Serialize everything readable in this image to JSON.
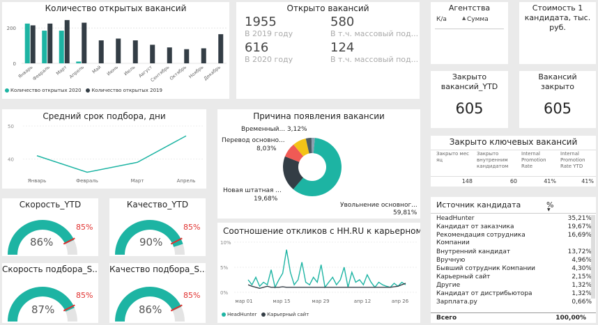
{
  "vacancies_chart": {
    "title": "Количество открытых вакансий",
    "legend": [
      "Количество открытых 2020",
      "Количество открытых 2019"
    ],
    "colors": {
      "s2020": "#1db4a3",
      "s2019": "#333d45"
    },
    "chart_data": {
      "type": "bar",
      "categories": [
        "Январь",
        "Февраль",
        "Март",
        "Апрель",
        "Май",
        "Июнь",
        "Июль",
        "Август",
        "Сентябрь",
        "Октябрь",
        "Ноябрь",
        "Декабрь"
      ],
      "series": [
        {
          "name": "Количество открытых 2020",
          "values": [
            225,
            185,
            185,
            10,
            null,
            null,
            null,
            null,
            null,
            null,
            null,
            null
          ]
        },
        {
          "name": "Количество открытых 2019",
          "values": [
            215,
            225,
            245,
            230,
            130,
            140,
            130,
            105,
            90,
            80,
            85,
            165
          ]
        }
      ],
      "ylim": [
        0,
        260
      ],
      "yticks": [
        "200",
        "0"
      ]
    }
  },
  "opened": {
    "title": "Открыто вакансий",
    "v1955": "1955",
    "l1955": "В 2019 году",
    "v580": "580",
    "l580": "В т.ч. массовый под...",
    "v616": "616",
    "l616": "В 2020 году",
    "v124": "124",
    "l124": "В т.ч. массовый под..."
  },
  "agencies": {
    "title": "Агентства",
    "col1": "К/а",
    "col2": "Сумма"
  },
  "cost": {
    "title": "Стоимость 1 кандидата, тыс. руб."
  },
  "closed_ytd": {
    "title": "Закрыто вакансий_YTD",
    "value": "605"
  },
  "closed": {
    "title": "Вакансий закрыто",
    "value": "605"
  },
  "key_closed": {
    "title": "Закрыто ключевых вакансий",
    "headers": [
      "Закрыто мес яц",
      "Закрыто внутренним кандидатом",
      "Internal Promotion Rate",
      "Internal Promotion Rate YTD"
    ],
    "values": [
      "148",
      "60",
      "41%",
      "41%"
    ]
  },
  "avg_time": {
    "title": "Средний срок подбора, дни",
    "color": "#1db4a3",
    "chart_data": {
      "type": "line",
      "x": [
        "Январь",
        "Февраль",
        "Март",
        "Апрель"
      ],
      "y": [
        41,
        36,
        39,
        47
      ],
      "ylim": [
        34,
        50
      ],
      "yticks": [
        "50",
        "40"
      ]
    }
  },
  "reason": {
    "title": "Причина появления вакансии",
    "labels": {
      "temp": "Временный... 3,12%",
      "transfer": "Перевод основно...",
      "transfer_pct": "8,03%",
      "new": "Новая штатная ...",
      "new_pct": "19,68%",
      "dismiss": "Увольнение основног...",
      "dismiss_pct": "59,81%"
    },
    "chart_data": {
      "type": "pie",
      "slices": [
        {
          "label": "Увольнение основног...",
          "value": 59.81,
          "color": "#1db4a3"
        },
        {
          "label": "Новая штатная ...",
          "value": 19.68,
          "color": "#333d45"
        },
        {
          "label": "Перевод основно...",
          "value": 8.03,
          "color": "#f05a55"
        },
        {
          "label": "",
          "value": 7.5,
          "color": "#f3c317"
        },
        {
          "label": "Временный...",
          "value": 3.12,
          "color": "#4d5a63"
        },
        {
          "label": "",
          "value": 1.86,
          "color": "#8aa0b0"
        }
      ]
    }
  },
  "gauges": [
    {
      "title": "Скорость_YTD",
      "value": "86%",
      "pct": 0.86,
      "target": "85%"
    },
    {
      "title": "Качество_YTD",
      "value": "90%",
      "pct": 0.9,
      "target": "85%"
    },
    {
      "title": "Скорость подбора_S...",
      "value": "87%",
      "pct": 0.87,
      "target": "85%"
    },
    {
      "title": "Качество подбора_S...",
      "value": "86%",
      "pct": 0.86,
      "target": "85%"
    }
  ],
  "hh": {
    "title": "Соотношение откликов с HH.RU к карьерному с...",
    "legend": [
      "HeadHunter",
      "Карьерный сайт"
    ],
    "colors": {
      "hh": "#1db4a3",
      "career": "#333d45"
    },
    "chart_data": {
      "type": "line",
      "x_ticks": [
        "мар 01",
        "мар 15",
        "мар 29",
        "апр 12",
        "апр 26"
      ],
      "yticks": [
        "10%",
        "5%",
        "0%"
      ],
      "ylim": [
        0,
        10
      ],
      "series": [
        {
          "name": "HeadHunter",
          "values": [
            2.5,
            1.5,
            3.0,
            1.2,
            2.0,
            1.5,
            4.5,
            1.0,
            2.5,
            3.8,
            8.5,
            4.0,
            1.5,
            2.5,
            6.0,
            2.0,
            1.5,
            3.0,
            2.0,
            5.5,
            1.0,
            2.0,
            3.0,
            1.5,
            2.5,
            5.0,
            1.0,
            4.0,
            2.0,
            2.5,
            1.5,
            3.5,
            2.0,
            1.0,
            2.0,
            1.5,
            1.2,
            1.0,
            1.8,
            1.2,
            2.0,
            1.5
          ]
        },
        {
          "name": "Карьерный сайт",
          "values": [
            1.5,
            1.2,
            1.0,
            0.8,
            1.0,
            1.2,
            1.0,
            1.0,
            1.0,
            1.1,
            1.0,
            1.0,
            1.0,
            1.0,
            1.0,
            1.0,
            1.0,
            1.0,
            1.0,
            1.0,
            1.0,
            1.0,
            1.0,
            1.0,
            1.0,
            1.0,
            1.0,
            1.0,
            1.0,
            1.0,
            1.0,
            1.0,
            1.0,
            1.0,
            1.0,
            1.0,
            1.0,
            1.0,
            1.1,
            1.2,
            1.5,
            1.8
          ]
        }
      ]
    }
  },
  "sources": {
    "col1": "Источник кандидата",
    "col2": "%",
    "rows": [
      {
        "name": "HeadHunter",
        "pct": "35,21%"
      },
      {
        "name": "Кандидат от заказчика",
        "pct": "19,67%"
      },
      {
        "name": "Рекомендация сотрудника",
        "name2": "Компании",
        "pct": "16,69%"
      },
      {
        "name": "Внутренний кандидат",
        "pct": "13,72%"
      },
      {
        "name": "Вручную",
        "pct": "4,96%"
      },
      {
        "name": "Бывший сотрудник Компании",
        "pct": "4,30%"
      },
      {
        "name": "Карьерный сайт",
        "pct": "2,15%"
      },
      {
        "name": "Другие",
        "pct": "1,32%"
      },
      {
        "name": "Кандидат от дистрибьютора",
        "pct": "1,32%"
      },
      {
        "name": "Зарплата.ру",
        "pct": "0,66%"
      }
    ],
    "total_label": "Всего",
    "total_value": "100,00%"
  }
}
